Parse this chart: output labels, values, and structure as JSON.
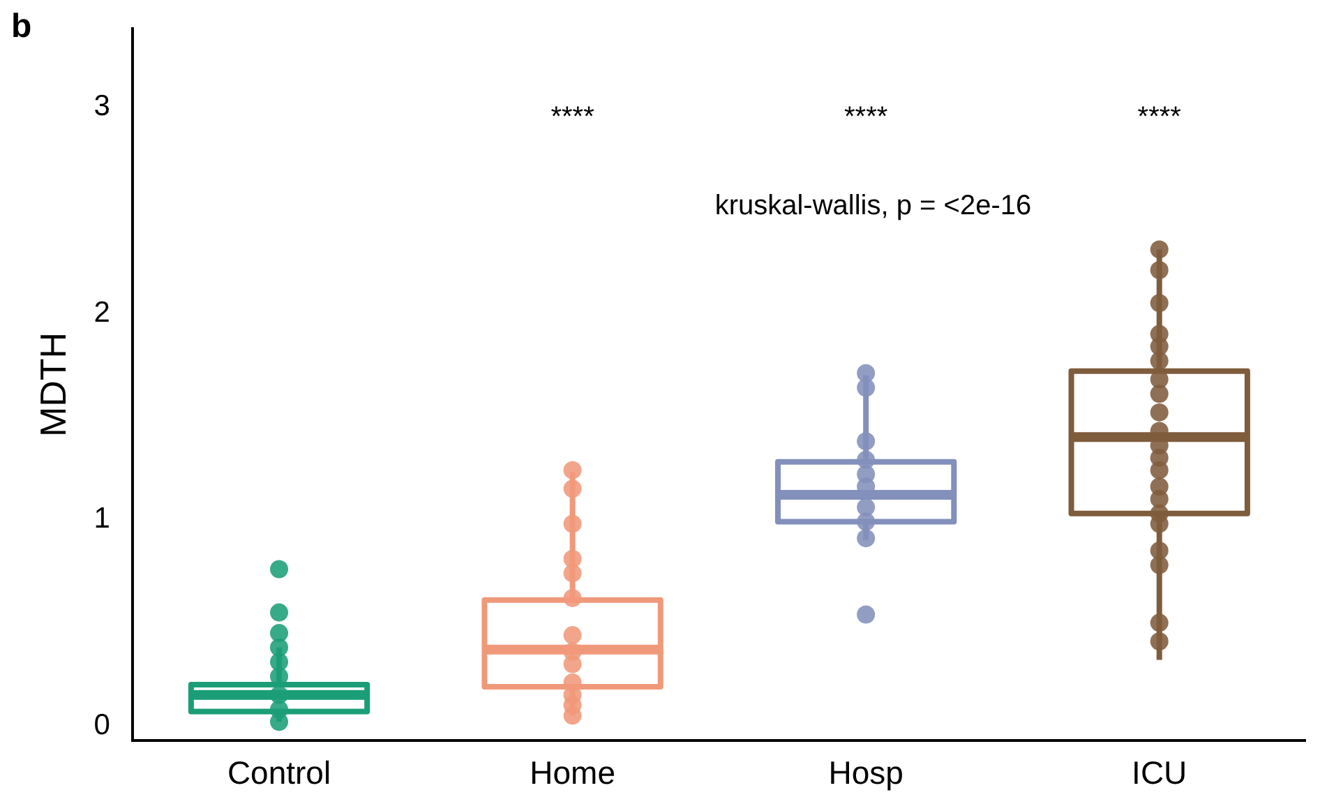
{
  "chart_data": {
    "type": "box",
    "ylabel": "MDTH",
    "categories": [
      "Control",
      "Home",
      "Hosp",
      "ICU"
    ],
    "colors": [
      "#1b9e77",
      "#f0997a",
      "#8390bc",
      "#7f5c3c"
    ],
    "boxes": [
      {
        "low": 0.02,
        "q1": 0.07,
        "median": 0.15,
        "q3": 0.2,
        "high": 0.38
      },
      {
        "low": 0.05,
        "q1": 0.19,
        "median": 0.37,
        "q3": 0.61,
        "high": 1.23
      },
      {
        "low": 0.9,
        "q1": 0.99,
        "median": 1.12,
        "q3": 1.28,
        "high": 1.7
      },
      {
        "low": 0.32,
        "q1": 1.03,
        "median": 1.4,
        "q3": 1.72,
        "high": 2.31
      }
    ],
    "series": [
      {
        "type": "scatter",
        "color": "#1b9e77",
        "x": [
          "Control",
          "Control",
          "Control",
          "Control",
          "Control",
          "Control",
          "Control",
          "Control",
          "Control"
        ],
        "values": [
          0.76,
          0.55,
          0.45,
          0.38,
          0.31,
          0.24,
          0.15,
          0.08,
          0.02
        ]
      },
      {
        "type": "scatter",
        "color": "#f0997a",
        "x": [
          "Home",
          "Home",
          "Home",
          "Home",
          "Home",
          "Home",
          "Home",
          "Home",
          "Home",
          "Home",
          "Home",
          "Home",
          "Home"
        ],
        "values": [
          1.24,
          1.15,
          0.98,
          0.81,
          0.74,
          0.62,
          0.44,
          0.36,
          0.3,
          0.21,
          0.15,
          0.1,
          0.05
        ]
      },
      {
        "type": "scatter",
        "color": "#8390bc",
        "x": [
          "Hosp",
          "Hosp",
          "Hosp",
          "Hosp",
          "Hosp",
          "Hosp",
          "Hosp",
          "Hosp",
          "Hosp",
          "Hosp"
        ],
        "values": [
          1.71,
          1.64,
          1.38,
          1.29,
          1.22,
          1.16,
          1.06,
          0.99,
          0.91,
          0.54
        ]
      },
      {
        "type": "scatter",
        "color": "#7f5c3c",
        "x": [
          "ICU",
          "ICU",
          "ICU",
          "ICU",
          "ICU",
          "ICU",
          "ICU",
          "ICU",
          "ICU",
          "ICU",
          "ICU",
          "ICU",
          "ICU",
          "ICU",
          "ICU",
          "ICU",
          "ICU",
          "ICU",
          "ICU",
          "ICU",
          "ICU"
        ],
        "values": [
          2.31,
          2.21,
          2.05,
          1.9,
          1.84,
          1.77,
          1.68,
          1.61,
          1.52,
          1.43,
          1.36,
          1.3,
          1.24,
          1.16,
          1.1,
          1.03,
          0.98,
          0.85,
          0.78,
          0.5,
          0.41
        ]
      }
    ],
    "ylim": [
      -0.07,
      3.38
    ],
    "yticks": [
      0,
      1,
      2,
      3
    ],
    "grid": false,
    "legend": false,
    "marker": "circle",
    "annotations": [
      "b",
      "****",
      "****",
      "****",
      "kruskal-wallis, p = <2e-16"
    ]
  }
}
